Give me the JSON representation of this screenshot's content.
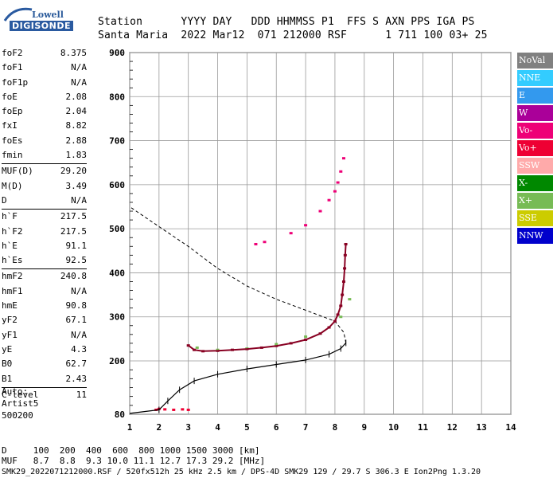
{
  "logo": {
    "line1": "Lowell",
    "line2": "DIGISONDE"
  },
  "header": {
    "row1": "Station      YYYY DAY   DDD HHMMSS P1  FFS S AXN PPS IGA PS",
    "row2": "Santa Maria  2022 Mar12  071 212000 RSF      1 711 100 03+ 25"
  },
  "params": [
    {
      "k": "foF2",
      "v": "8.375"
    },
    {
      "k": "foF1",
      "v": "N/A"
    },
    {
      "k": "foF1p",
      "v": "N/A"
    },
    {
      "k": "foE",
      "v": "2.08"
    },
    {
      "k": "foEp",
      "v": "2.04"
    },
    {
      "k": "fxI",
      "v": "8.82"
    },
    {
      "k": "foEs",
      "v": "2.88"
    },
    {
      "k": "fmin",
      "v": "1.83"
    },
    {
      "k": "MUF(D)",
      "v": "29.20"
    },
    {
      "k": "M(D)",
      "v": "3.49"
    },
    {
      "k": "D",
      "v": "N/A"
    },
    {
      "k": "h`F",
      "v": "217.5"
    },
    {
      "k": "h`F2",
      "v": "217.5"
    },
    {
      "k": "h`E",
      "v": "91.1"
    },
    {
      "k": "h`Es",
      "v": "92.5"
    },
    {
      "k": "hmF2",
      "v": "240.8"
    },
    {
      "k": "hmF1",
      "v": "N/A"
    },
    {
      "k": "hmE",
      "v": "90.8"
    },
    {
      "k": "yF2",
      "v": "67.1"
    },
    {
      "k": "yF1",
      "v": "N/A"
    },
    {
      "k": "yE",
      "v": "4.3"
    },
    {
      "k": "B0",
      "v": "62.7"
    },
    {
      "k": "B1",
      "v": "2.43"
    },
    {
      "k": "C-level",
      "v": "11"
    }
  ],
  "separators_after": [
    7,
    10,
    14,
    22
  ],
  "auto": {
    "l1": "Auto:",
    "l2": "Artist5",
    "l3": "500200"
  },
  "legend": [
    {
      "label": "NoVal",
      "color": "#808080"
    },
    {
      "label": "NNE",
      "color": "#33ccff"
    },
    {
      "label": "E",
      "color": "#3399ee"
    },
    {
      "label": "W",
      "color": "#aa0099"
    },
    {
      "label": "Vo-",
      "color": "#ee0077"
    },
    {
      "label": "Vo+",
      "color": "#ee0033"
    },
    {
      "label": "SSW",
      "color": "#ffaaaa"
    },
    {
      "label": "X-",
      "color": "#008800"
    },
    {
      "label": "X+",
      "color": "#77bb55"
    },
    {
      "label": "SSE",
      "color": "#cccc00"
    },
    {
      "label": "NNW",
      "color": "#0000cc"
    }
  ],
  "bottom": {
    "d_row": "D     100  200  400  600  800 1000 1500 3000 [km]",
    "muf_row": "MUF   8.7  8.8  9.3 10.0 11.1 12.7 17.3 29.2 [MHz]",
    "file_row": "SMK29_2022071212000.RSF / 520fx512h 25 kHz 2.5 km / DPS-4D SMK29 129 / 29.7 S 306.3 E Ion2Png 1.3.20"
  },
  "chart_data": {
    "type": "scatter",
    "title": "",
    "xlabel": "",
    "ylabel": "",
    "xlim": [
      1,
      14
    ],
    "ylim": [
      80,
      900
    ],
    "x_ticks": [
      1,
      2,
      3,
      4,
      5,
      6,
      7,
      8,
      9,
      10,
      11,
      12,
      13,
      14
    ],
    "y_ticks": [
      80,
      200,
      300,
      400,
      500,
      600,
      700,
      800,
      900
    ],
    "grid": true,
    "series": [
      {
        "mode": "O",
        "color": "#880022",
        "points": [
          [
            3.0,
            235
          ],
          [
            3.2,
            225
          ],
          [
            3.5,
            222
          ],
          [
            4.0,
            223
          ],
          [
            4.5,
            225
          ],
          [
            5.0,
            227
          ],
          [
            5.5,
            230
          ],
          [
            6.0,
            234
          ],
          [
            6.5,
            240
          ],
          [
            7.0,
            248
          ],
          [
            7.5,
            262
          ],
          [
            7.8,
            276
          ],
          [
            8.0,
            290
          ],
          [
            8.1,
            305
          ],
          [
            8.2,
            325
          ],
          [
            8.25,
            350
          ],
          [
            8.3,
            380
          ],
          [
            8.33,
            410
          ],
          [
            8.35,
            440
          ],
          [
            8.37,
            465
          ]
        ]
      },
      {
        "mode": "E-trace",
        "color": "#ee0033",
        "points": [
          [
            1.9,
            90
          ],
          [
            2.0,
            92
          ],
          [
            2.2,
            91
          ],
          [
            2.5,
            90
          ],
          [
            2.8,
            91
          ],
          [
            3.0,
            90
          ]
        ]
      },
      {
        "mode": "F-upper",
        "color": "#ee0077",
        "points": [
          [
            5.3,
            465
          ],
          [
            5.6,
            470
          ],
          [
            6.5,
            490
          ],
          [
            7.0,
            508
          ],
          [
            7.5,
            540
          ],
          [
            7.8,
            565
          ],
          [
            8.0,
            585
          ],
          [
            8.1,
            605
          ],
          [
            8.2,
            630
          ],
          [
            8.3,
            660
          ]
        ]
      },
      {
        "mode": "X",
        "color": "#77bb55",
        "points": [
          [
            3.3,
            230
          ],
          [
            4.0,
            225
          ],
          [
            5.0,
            228
          ],
          [
            6.0,
            238
          ],
          [
            7.0,
            255
          ],
          [
            8.2,
            300
          ],
          [
            8.5,
            340
          ]
        ]
      }
    ],
    "profile_solid": [
      [
        1,
        82
      ],
      [
        2.0,
        90
      ],
      [
        2.3,
        110
      ],
      [
        2.7,
        135
      ],
      [
        3.2,
        155
      ],
      [
        4,
        170
      ],
      [
        5,
        182
      ],
      [
        6,
        192
      ],
      [
        7,
        202
      ],
      [
        7.8,
        215
      ],
      [
        8.2,
        228
      ],
      [
        8.375,
        240.8
      ]
    ],
    "profile_dashed": [
      [
        8.375,
        240.8
      ],
      [
        8.3,
        265
      ],
      [
        8.0,
        290
      ],
      [
        7.0,
        315
      ],
      [
        6.0,
        340
      ],
      [
        5.0,
        370
      ],
      [
        4.0,
        410
      ],
      [
        3.0,
        460
      ],
      [
        2.0,
        505
      ],
      [
        1.0,
        550
      ]
    ]
  }
}
